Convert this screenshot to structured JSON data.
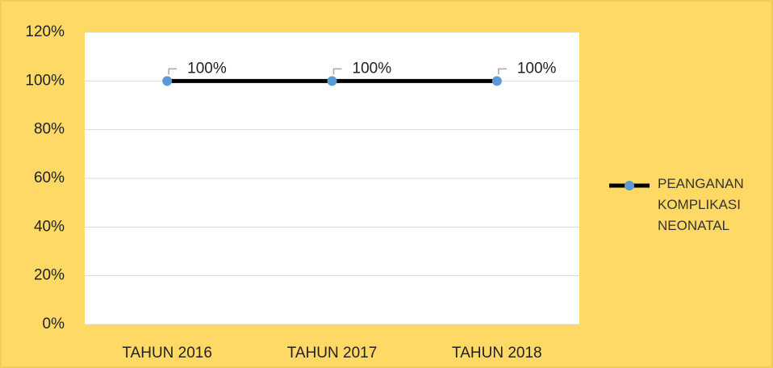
{
  "chart_data": {
    "type": "line",
    "categories": [
      "TAHUN 2016",
      "TAHUN 2017",
      "TAHUN 2018"
    ],
    "series": [
      {
        "name": "PEANGANAN KOMPLIKASI NEONATAL",
        "color": "#000000",
        "marker_color": "#5b9bd5",
        "values": [
          100,
          100,
          100
        ],
        "value_labels": [
          "100%",
          "100%",
          "100%"
        ]
      }
    ],
    "ylim": [
      0,
      120
    ],
    "yticks": [
      {
        "value": 0,
        "label": "0%"
      },
      {
        "value": 20,
        "label": "20%"
      },
      {
        "value": 40,
        "label": "40%"
      },
      {
        "value": 60,
        "label": "60%"
      },
      {
        "value": 80,
        "label": "80%"
      },
      {
        "value": 100,
        "label": "100%"
      },
      {
        "value": 120,
        "label": "120%"
      }
    ],
    "grid": true,
    "legend": "right"
  }
}
